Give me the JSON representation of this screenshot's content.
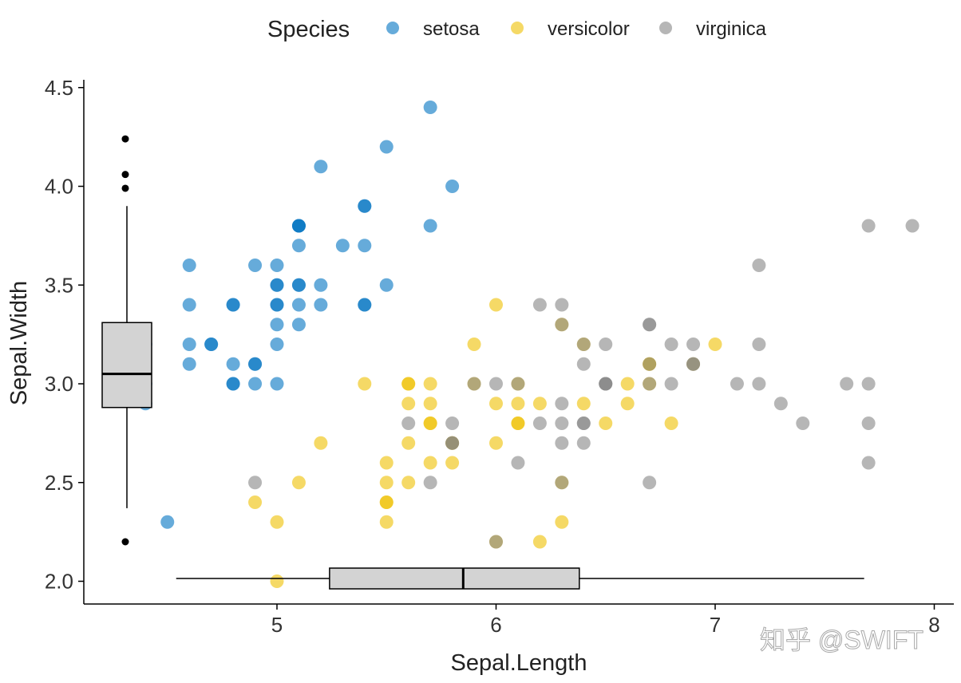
{
  "chart_data": {
    "type": "scatter",
    "title": "",
    "xlabel": "Sepal.Length",
    "ylabel": "Sepal.Width",
    "xlim": [
      4.12,
      8.09
    ],
    "ylim": [
      1.89,
      4.54
    ],
    "xticks": [
      "5",
      "6",
      "7",
      "8"
    ],
    "yticks": [
      "2.0",
      "2.5",
      "3.0",
      "3.5",
      "4.0",
      "4.5"
    ],
    "grid": false,
    "legend": {
      "title": "Species",
      "placement": "top"
    },
    "series": [
      {
        "name": "setosa",
        "color": "#0073C2",
        "x": [
          5.1,
          4.9,
          4.7,
          4.6,
          5.0,
          5.4,
          4.6,
          5.0,
          4.4,
          4.9,
          5.4,
          4.8,
          4.8,
          4.3,
          5.8,
          5.7,
          5.4,
          5.1,
          5.7,
          5.1,
          5.4,
          5.1,
          4.6,
          5.1,
          4.8,
          5.0,
          5.0,
          5.2,
          5.2,
          4.7,
          4.8,
          5.4,
          5.2,
          5.5,
          4.9,
          5.0,
          5.5,
          4.9,
          4.4,
          5.1,
          5.0,
          4.5,
          4.4,
          5.0,
          5.1,
          4.8,
          5.1,
          4.6,
          5.3,
          5.0
        ],
        "y": [
          3.5,
          3.0,
          3.2,
          3.1,
          3.6,
          3.9,
          3.4,
          3.4,
          2.9,
          3.1,
          3.7,
          3.4,
          3.0,
          3.0,
          4.0,
          4.4,
          3.9,
          3.5,
          3.8,
          3.8,
          3.4,
          3.7,
          3.6,
          3.3,
          3.4,
          3.0,
          3.4,
          3.5,
          3.4,
          3.2,
          3.1,
          3.4,
          4.1,
          4.2,
          3.1,
          3.2,
          3.5,
          3.6,
          3.0,
          3.4,
          3.5,
          2.3,
          3.2,
          3.5,
          3.8,
          3.0,
          3.8,
          3.2,
          3.7,
          3.3
        ]
      },
      {
        "name": "versicolor",
        "color": "#EFC000",
        "x": [
          7.0,
          6.4,
          6.9,
          5.5,
          6.5,
          5.7,
          6.3,
          4.9,
          6.6,
          5.2,
          5.0,
          5.9,
          6.0,
          6.1,
          5.6,
          6.7,
          5.6,
          5.8,
          6.2,
          5.6,
          5.9,
          6.1,
          6.3,
          6.1,
          6.4,
          6.6,
          6.8,
          6.7,
          6.0,
          5.7,
          5.5,
          5.5,
          5.8,
          6.0,
          5.4,
          6.0,
          6.7,
          6.3,
          5.6,
          5.5,
          5.5,
          6.1,
          5.8,
          5.0,
          5.6,
          5.7,
          5.7,
          6.2,
          5.1,
          5.7
        ],
        "y": [
          3.2,
          3.2,
          3.1,
          2.3,
          2.8,
          2.8,
          3.3,
          2.4,
          2.9,
          2.7,
          2.0,
          3.0,
          2.2,
          2.9,
          2.9,
          3.1,
          3.0,
          2.7,
          2.2,
          2.5,
          3.2,
          2.8,
          2.5,
          2.8,
          2.9,
          3.0,
          2.8,
          3.0,
          2.9,
          2.6,
          2.4,
          2.4,
          2.7,
          2.7,
          3.0,
          3.4,
          3.1,
          2.3,
          3.0,
          2.5,
          2.6,
          3.0,
          2.6,
          2.3,
          2.7,
          3.0,
          2.9,
          2.9,
          2.5,
          2.8
        ]
      },
      {
        "name": "virginica",
        "color": "#868686",
        "x": [
          6.3,
          5.8,
          7.1,
          6.3,
          6.5,
          7.6,
          4.9,
          7.3,
          6.7,
          7.2,
          6.5,
          6.4,
          6.8,
          5.7,
          5.8,
          6.4,
          6.5,
          7.7,
          7.7,
          6.0,
          6.9,
          5.6,
          7.7,
          6.3,
          6.7,
          7.2,
          6.2,
          6.1,
          6.4,
          7.2,
          7.4,
          7.9,
          6.4,
          6.3,
          6.1,
          7.7,
          6.3,
          6.4,
          6.0,
          6.9,
          6.7,
          6.9,
          5.8,
          6.8,
          6.7,
          6.7,
          6.3,
          6.5,
          6.2,
          5.9
        ],
        "y": [
          3.3,
          2.7,
          3.0,
          2.9,
          3.0,
          3.0,
          2.5,
          2.9,
          2.5,
          3.6,
          3.2,
          2.7,
          3.0,
          2.5,
          2.8,
          3.2,
          3.0,
          3.8,
          2.6,
          2.2,
          3.2,
          2.8,
          2.8,
          2.7,
          3.3,
          3.2,
          2.8,
          3.0,
          2.8,
          3.0,
          2.8,
          3.8,
          2.8,
          2.8,
          2.6,
          3.0,
          3.4,
          3.1,
          3.0,
          3.1,
          3.1,
          3.1,
          2.7,
          3.2,
          3.3,
          3.0,
          2.5,
          3.0,
          3.4,
          3.0
        ]
      }
    ],
    "marginal_boxplots": {
      "y_box": {
        "variable": "Sepal.Width",
        "whisker_low": 2.37,
        "q1": 2.88,
        "median": 3.05,
        "q3": 3.31,
        "whisker_high": 3.9,
        "outliers": [
          4.24,
          4.06,
          3.99,
          2.2
        ],
        "fill": "#D3D3D3"
      },
      "x_box": {
        "variable": "Sepal.Length",
        "whisker_low": 4.54,
        "q1": 5.24,
        "median": 5.85,
        "q3": 6.38,
        "whisker_high": 7.68,
        "outliers": [],
        "fill": "#D3D3D3"
      }
    }
  },
  "watermark": "知乎 @SWIFT"
}
